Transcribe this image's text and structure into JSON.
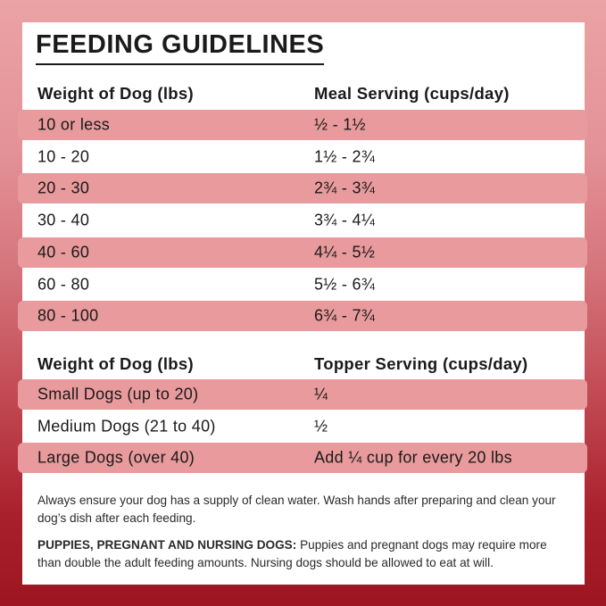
{
  "header": {
    "title": "FEEDING GUIDELINES"
  },
  "tables": [
    {
      "columns": [
        "Weight of Dog (lbs)",
        "Meal Serving (cups/day)"
      ],
      "rows": [
        [
          "10 or less",
          "½ - 1½"
        ],
        [
          "10 - 20",
          "1½ - 2¾"
        ],
        [
          "20 - 30",
          "2¾ - 3¾"
        ],
        [
          "30 - 40",
          "3¾ - 4¼"
        ],
        [
          "40 - 60",
          "4¼ - 5½"
        ],
        [
          "60 - 80",
          "5½ - 6¾"
        ],
        [
          "80 - 100",
          "6¾ - 7¾"
        ]
      ]
    },
    {
      "columns": [
        "Weight of Dog (lbs)",
        "Topper Serving (cups/day)"
      ],
      "rows": [
        [
          "Small Dogs (up to 20)",
          "¼"
        ],
        [
          "Medium Dogs (21 to 40)",
          "½"
        ],
        [
          "Large Dogs (over 40)",
          "Add ¼ cup for every 20 lbs"
        ]
      ]
    }
  ],
  "notes": [
    {
      "text": "Always ensure your dog has a supply of clean water. Wash hands after preparing and clean your dog’s dish after each feeding."
    },
    {
      "label": "PUPPIES, PREGNANT AND NURSING DOGS:",
      "text": "Puppies and pregnant dogs may require more than double the adult feeding amounts. Nursing dogs should be allowed to eat at will."
    }
  ]
}
